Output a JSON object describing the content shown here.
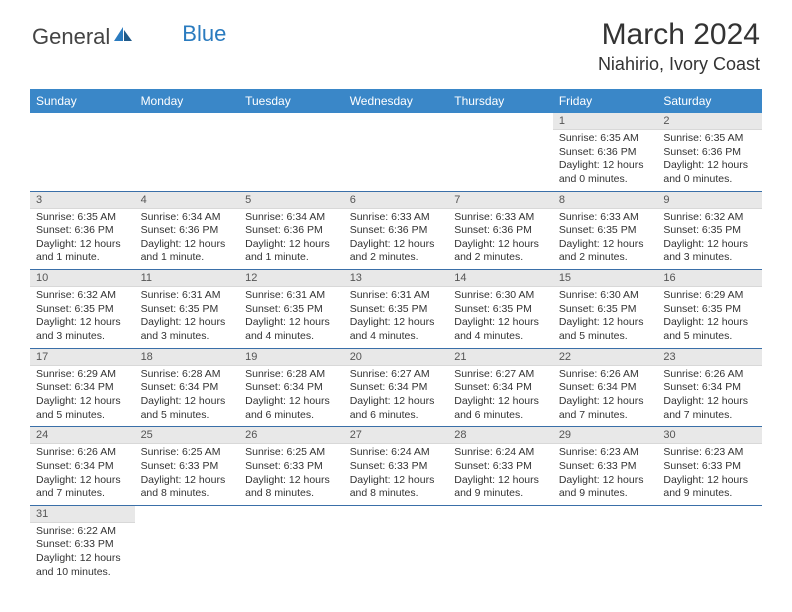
{
  "logo": {
    "part1": "General",
    "part2": "Blue"
  },
  "title": "March 2024",
  "location": "Niahirio, Ivory Coast",
  "colors": {
    "header_bg": "#3a87c8",
    "row_divider": "#3a6fa8",
    "daynum_bg": "#e8e8e8",
    "text": "#333333",
    "logo_accent": "#2a7bbf"
  },
  "weekdays": [
    "Sunday",
    "Monday",
    "Tuesday",
    "Wednesday",
    "Thursday",
    "Friday",
    "Saturday"
  ],
  "weeks": [
    [
      {
        "n": "",
        "sr": "",
        "ss": "",
        "dl": ""
      },
      {
        "n": "",
        "sr": "",
        "ss": "",
        "dl": ""
      },
      {
        "n": "",
        "sr": "",
        "ss": "",
        "dl": ""
      },
      {
        "n": "",
        "sr": "",
        "ss": "",
        "dl": ""
      },
      {
        "n": "",
        "sr": "",
        "ss": "",
        "dl": ""
      },
      {
        "n": "1",
        "sr": "Sunrise: 6:35 AM",
        "ss": "Sunset: 6:36 PM",
        "dl": "Daylight: 12 hours and 0 minutes."
      },
      {
        "n": "2",
        "sr": "Sunrise: 6:35 AM",
        "ss": "Sunset: 6:36 PM",
        "dl": "Daylight: 12 hours and 0 minutes."
      }
    ],
    [
      {
        "n": "3",
        "sr": "Sunrise: 6:35 AM",
        "ss": "Sunset: 6:36 PM",
        "dl": "Daylight: 12 hours and 1 minute."
      },
      {
        "n": "4",
        "sr": "Sunrise: 6:34 AM",
        "ss": "Sunset: 6:36 PM",
        "dl": "Daylight: 12 hours and 1 minute."
      },
      {
        "n": "5",
        "sr": "Sunrise: 6:34 AM",
        "ss": "Sunset: 6:36 PM",
        "dl": "Daylight: 12 hours and 1 minute."
      },
      {
        "n": "6",
        "sr": "Sunrise: 6:33 AM",
        "ss": "Sunset: 6:36 PM",
        "dl": "Daylight: 12 hours and 2 minutes."
      },
      {
        "n": "7",
        "sr": "Sunrise: 6:33 AM",
        "ss": "Sunset: 6:36 PM",
        "dl": "Daylight: 12 hours and 2 minutes."
      },
      {
        "n": "8",
        "sr": "Sunrise: 6:33 AM",
        "ss": "Sunset: 6:35 PM",
        "dl": "Daylight: 12 hours and 2 minutes."
      },
      {
        "n": "9",
        "sr": "Sunrise: 6:32 AM",
        "ss": "Sunset: 6:35 PM",
        "dl": "Daylight: 12 hours and 3 minutes."
      }
    ],
    [
      {
        "n": "10",
        "sr": "Sunrise: 6:32 AM",
        "ss": "Sunset: 6:35 PM",
        "dl": "Daylight: 12 hours and 3 minutes."
      },
      {
        "n": "11",
        "sr": "Sunrise: 6:31 AM",
        "ss": "Sunset: 6:35 PM",
        "dl": "Daylight: 12 hours and 3 minutes."
      },
      {
        "n": "12",
        "sr": "Sunrise: 6:31 AM",
        "ss": "Sunset: 6:35 PM",
        "dl": "Daylight: 12 hours and 4 minutes."
      },
      {
        "n": "13",
        "sr": "Sunrise: 6:31 AM",
        "ss": "Sunset: 6:35 PM",
        "dl": "Daylight: 12 hours and 4 minutes."
      },
      {
        "n": "14",
        "sr": "Sunrise: 6:30 AM",
        "ss": "Sunset: 6:35 PM",
        "dl": "Daylight: 12 hours and 4 minutes."
      },
      {
        "n": "15",
        "sr": "Sunrise: 6:30 AM",
        "ss": "Sunset: 6:35 PM",
        "dl": "Daylight: 12 hours and 5 minutes."
      },
      {
        "n": "16",
        "sr": "Sunrise: 6:29 AM",
        "ss": "Sunset: 6:35 PM",
        "dl": "Daylight: 12 hours and 5 minutes."
      }
    ],
    [
      {
        "n": "17",
        "sr": "Sunrise: 6:29 AM",
        "ss": "Sunset: 6:34 PM",
        "dl": "Daylight: 12 hours and 5 minutes."
      },
      {
        "n": "18",
        "sr": "Sunrise: 6:28 AM",
        "ss": "Sunset: 6:34 PM",
        "dl": "Daylight: 12 hours and 5 minutes."
      },
      {
        "n": "19",
        "sr": "Sunrise: 6:28 AM",
        "ss": "Sunset: 6:34 PM",
        "dl": "Daylight: 12 hours and 6 minutes."
      },
      {
        "n": "20",
        "sr": "Sunrise: 6:27 AM",
        "ss": "Sunset: 6:34 PM",
        "dl": "Daylight: 12 hours and 6 minutes."
      },
      {
        "n": "21",
        "sr": "Sunrise: 6:27 AM",
        "ss": "Sunset: 6:34 PM",
        "dl": "Daylight: 12 hours and 6 minutes."
      },
      {
        "n": "22",
        "sr": "Sunrise: 6:26 AM",
        "ss": "Sunset: 6:34 PM",
        "dl": "Daylight: 12 hours and 7 minutes."
      },
      {
        "n": "23",
        "sr": "Sunrise: 6:26 AM",
        "ss": "Sunset: 6:34 PM",
        "dl": "Daylight: 12 hours and 7 minutes."
      }
    ],
    [
      {
        "n": "24",
        "sr": "Sunrise: 6:26 AM",
        "ss": "Sunset: 6:34 PM",
        "dl": "Daylight: 12 hours and 7 minutes."
      },
      {
        "n": "25",
        "sr": "Sunrise: 6:25 AM",
        "ss": "Sunset: 6:33 PM",
        "dl": "Daylight: 12 hours and 8 minutes."
      },
      {
        "n": "26",
        "sr": "Sunrise: 6:25 AM",
        "ss": "Sunset: 6:33 PM",
        "dl": "Daylight: 12 hours and 8 minutes."
      },
      {
        "n": "27",
        "sr": "Sunrise: 6:24 AM",
        "ss": "Sunset: 6:33 PM",
        "dl": "Daylight: 12 hours and 8 minutes."
      },
      {
        "n": "28",
        "sr": "Sunrise: 6:24 AM",
        "ss": "Sunset: 6:33 PM",
        "dl": "Daylight: 12 hours and 9 minutes."
      },
      {
        "n": "29",
        "sr": "Sunrise: 6:23 AM",
        "ss": "Sunset: 6:33 PM",
        "dl": "Daylight: 12 hours and 9 minutes."
      },
      {
        "n": "30",
        "sr": "Sunrise: 6:23 AM",
        "ss": "Sunset: 6:33 PM",
        "dl": "Daylight: 12 hours and 9 minutes."
      }
    ],
    [
      {
        "n": "31",
        "sr": "Sunrise: 6:22 AM",
        "ss": "Sunset: 6:33 PM",
        "dl": "Daylight: 12 hours and 10 minutes."
      },
      {
        "n": "",
        "sr": "",
        "ss": "",
        "dl": ""
      },
      {
        "n": "",
        "sr": "",
        "ss": "",
        "dl": ""
      },
      {
        "n": "",
        "sr": "",
        "ss": "",
        "dl": ""
      },
      {
        "n": "",
        "sr": "",
        "ss": "",
        "dl": ""
      },
      {
        "n": "",
        "sr": "",
        "ss": "",
        "dl": ""
      },
      {
        "n": "",
        "sr": "",
        "ss": "",
        "dl": ""
      }
    ]
  ]
}
